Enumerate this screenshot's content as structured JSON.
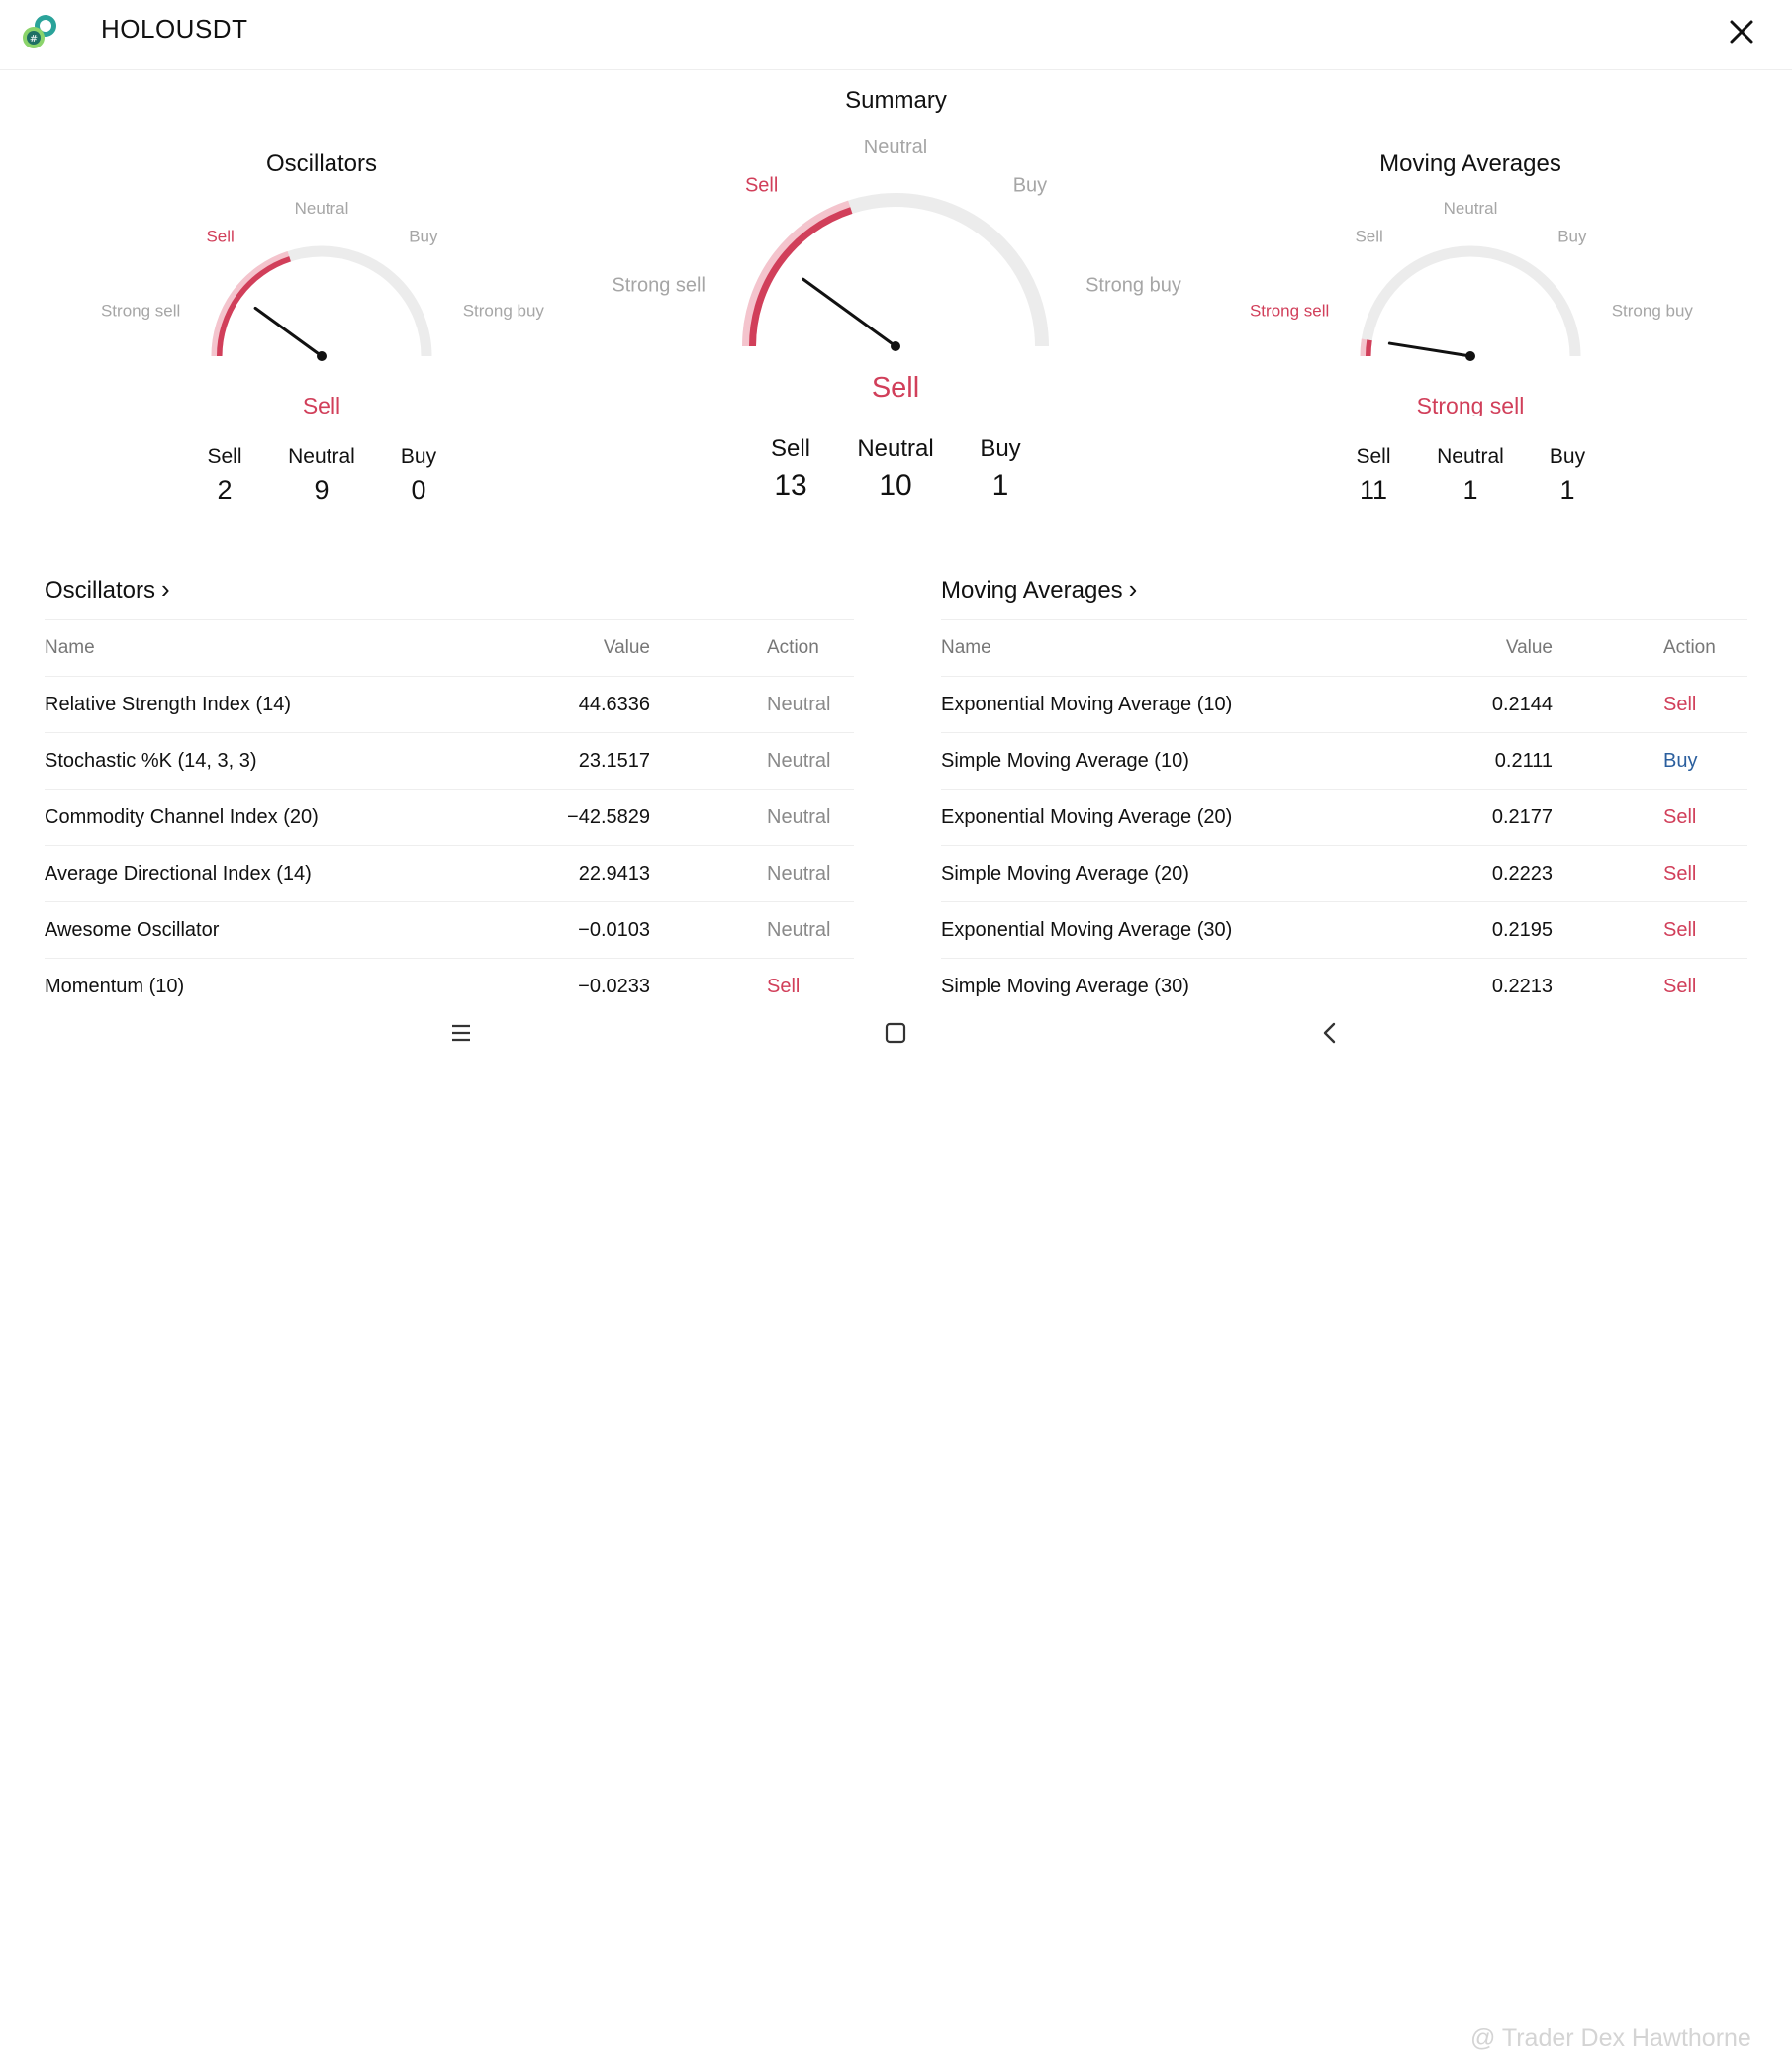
{
  "header": {
    "title": "HOLOUSDT",
    "logo_icon": "coin-logo-icon",
    "close_icon": "close-icon"
  },
  "summary_title": "Summary",
  "colors": {
    "sell": "#d13f5a",
    "buy": "#2b5f9e",
    "neutral_text": "#8a8a8a",
    "arc_gray": "#ececec",
    "muted_label": "#a6a6a6"
  },
  "gauges": {
    "oscillators": {
      "title": "Oscillators",
      "labels": {
        "strong_sell": "Strong sell",
        "sell": "Sell",
        "neutral": "Neutral",
        "buy": "Buy",
        "strong_buy": "Strong buy"
      },
      "result": "Sell",
      "needle_fraction": 0.2,
      "counts": {
        "sell_label": "Sell",
        "sell": "2",
        "neutral_label": "Neutral",
        "neutral": "9",
        "buy_label": "Buy",
        "buy": "0"
      }
    },
    "summary": {
      "title": "",
      "labels": {
        "strong_sell": "Strong sell",
        "sell": "Sell",
        "neutral": "Neutral",
        "buy": "Buy",
        "strong_buy": "Strong buy"
      },
      "result": "Sell",
      "needle_fraction": 0.2,
      "counts": {
        "sell_label": "Sell",
        "sell": "13",
        "neutral_label": "Neutral",
        "neutral": "10",
        "buy_label": "Buy",
        "buy": "1"
      }
    },
    "moving_averages": {
      "title": "Moving Averages",
      "labels": {
        "strong_sell": "Strong sell",
        "sell": "Sell",
        "neutral": "Neutral",
        "buy": "Buy",
        "strong_buy": "Strong buy"
      },
      "result": "Strong sell",
      "needle_fraction": 0.05,
      "counts": {
        "sell_label": "Sell",
        "sell": "11",
        "neutral_label": "Neutral",
        "neutral": "1",
        "buy_label": "Buy",
        "buy": "1"
      }
    }
  },
  "oscillators_table": {
    "title": "Oscillators",
    "columns": {
      "name": "Name",
      "value": "Value",
      "action": "Action"
    },
    "rows": [
      {
        "name": "Relative Strength Index (14)",
        "value": "44.6336",
        "action": "Neutral"
      },
      {
        "name": "Stochastic %K (14, 3, 3)",
        "value": "23.1517",
        "action": "Neutral"
      },
      {
        "name": "Commodity Channel Index (20)",
        "value": "−42.5829",
        "action": "Neutral"
      },
      {
        "name": "Average Directional Index (14)",
        "value": "22.9413",
        "action": "Neutral"
      },
      {
        "name": "Awesome Oscillator",
        "value": "−0.0103",
        "action": "Neutral"
      },
      {
        "name": "Momentum (10)",
        "value": "−0.0233",
        "action": "Sell"
      }
    ]
  },
  "ma_table": {
    "title": "Moving Averages",
    "columns": {
      "name": "Name",
      "value": "Value",
      "action": "Action"
    },
    "rows": [
      {
        "name": "Exponential Moving Average (10)",
        "value": "0.2144",
        "action": "Sell"
      },
      {
        "name": "Simple Moving Average (10)",
        "value": "0.2111",
        "action": "Buy"
      },
      {
        "name": "Exponential Moving Average (20)",
        "value": "0.2177",
        "action": "Sell"
      },
      {
        "name": "Simple Moving Average (20)",
        "value": "0.2223",
        "action": "Sell"
      },
      {
        "name": "Exponential Moving Average (30)",
        "value": "0.2195",
        "action": "Sell"
      },
      {
        "name": "Simple Moving Average (30)",
        "value": "0.2213",
        "action": "Sell"
      }
    ]
  },
  "navbar": {
    "menu_icon": "menu-icon",
    "home_icon": "home-square-icon",
    "back_icon": "back-chevron-icon"
  },
  "watermark": "@ Trader Dex Hawthorne"
}
